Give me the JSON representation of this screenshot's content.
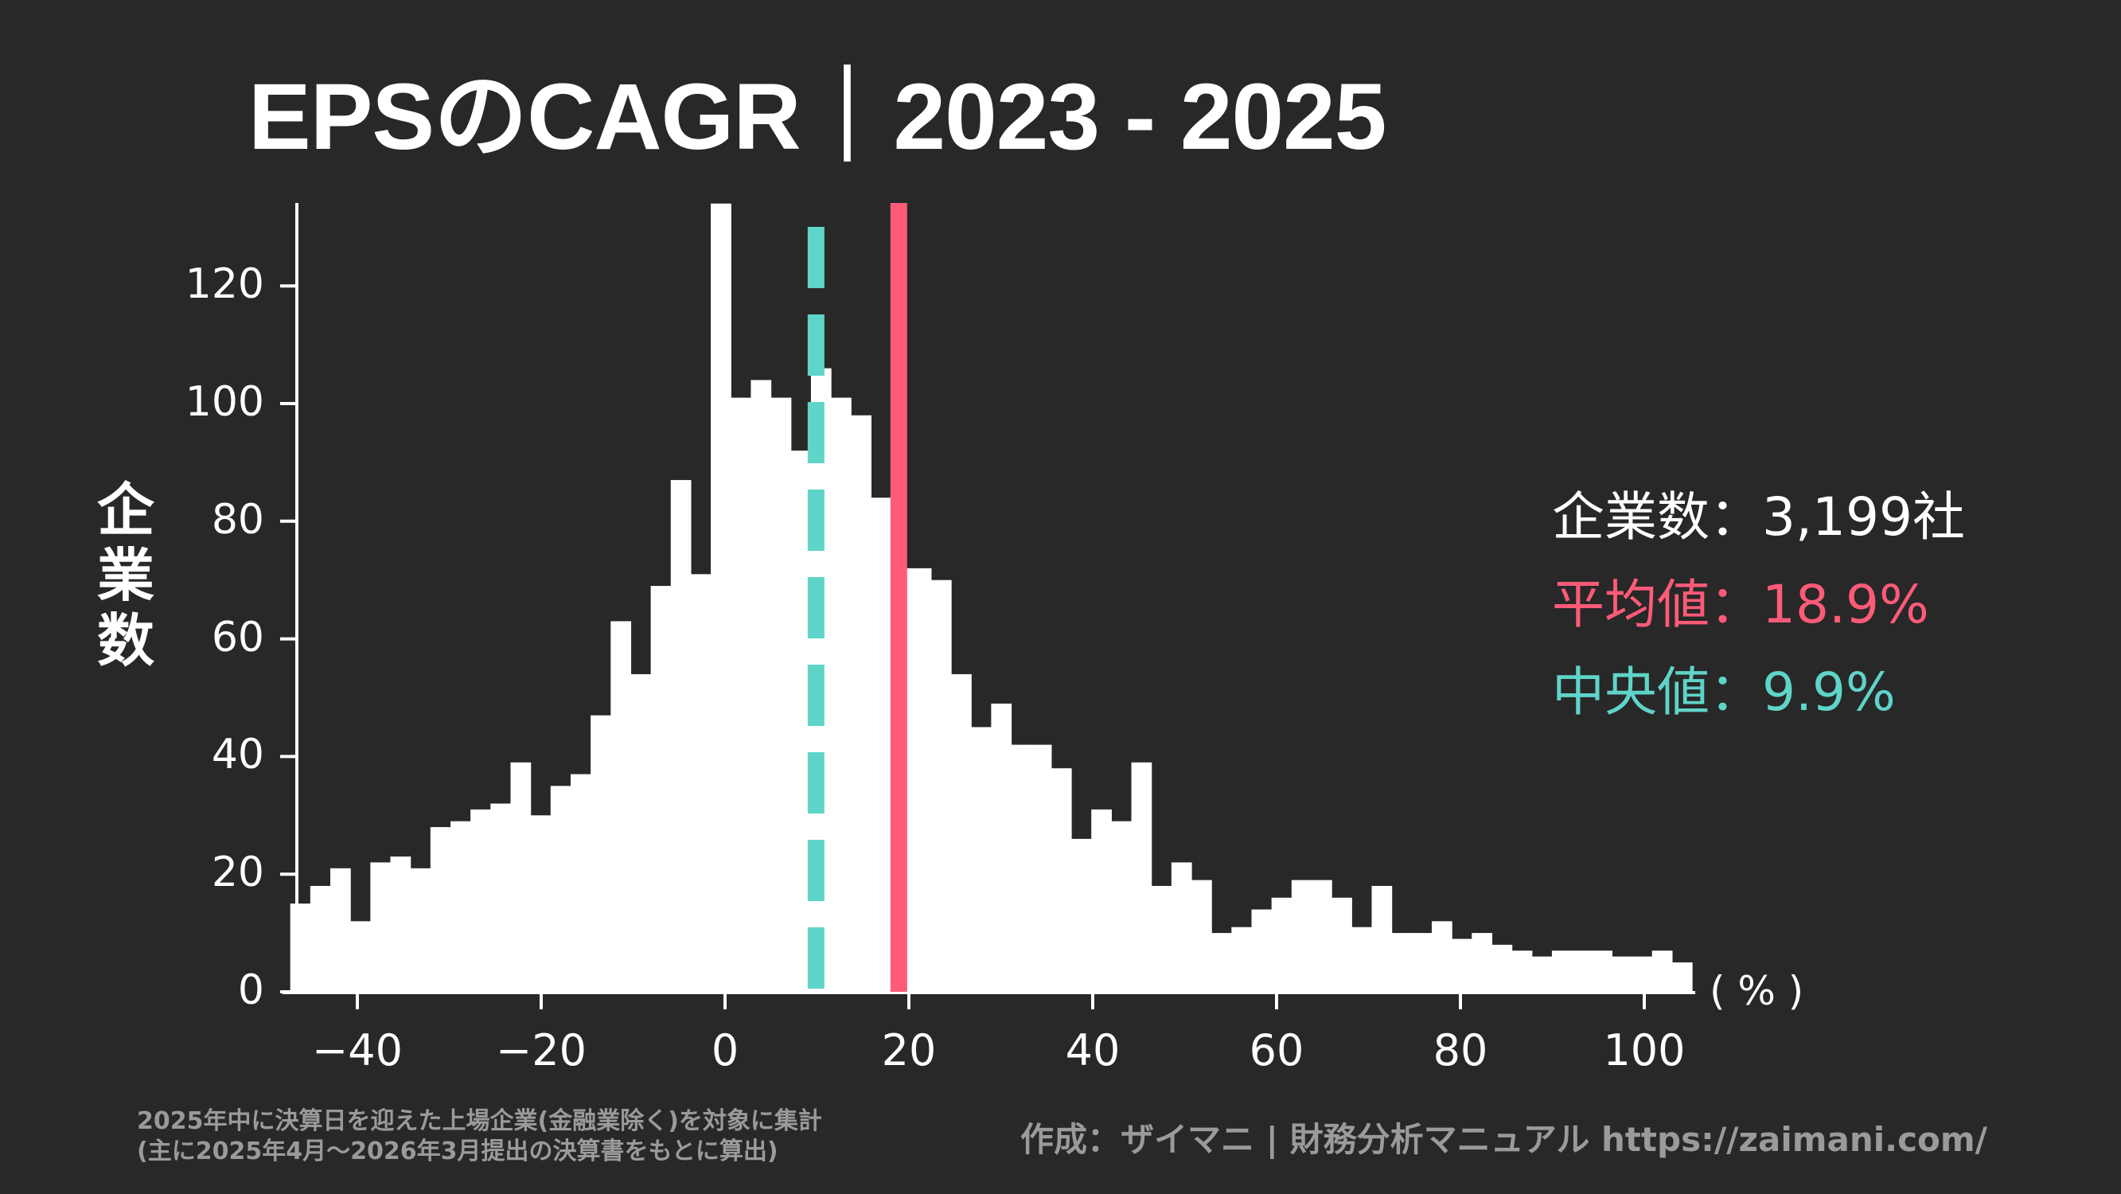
{
  "title": "EPSのCAGR｜2023 - 2025",
  "ylabel_chars": [
    "企",
    "業",
    "数"
  ],
  "axis_unit": "( % )",
  "legend": {
    "count": {
      "label": "企業数：",
      "value": "3,199社",
      "color": "#ffffff"
    },
    "mean": {
      "label": "平均値：",
      "value": "18.9%",
      "color": "#ff5b78"
    },
    "median": {
      "label": "中央値：",
      "value": "9.9%",
      "color": "#5fd4c9"
    }
  },
  "footnote": {
    "line1": "2025年中に決算日を迎えた上場企業(金融業除く)を対象に集計",
    "line2": "(主に2025年4月～2026年3月提出の決算書をもとに算出)"
  },
  "credit": "作成：ザイマニ | 財務分析マニュアル https://zaimani.com/",
  "colors": {
    "background": "#282828",
    "bars": "#ffffff",
    "mean_line": "#ff5b78",
    "median_line": "#5fd4c9"
  },
  "chart_data": {
    "type": "bar",
    "subtype": "histogram",
    "title": "EPSのCAGR｜2023 - 2025",
    "xlabel": "( % )",
    "ylabel": "企業数",
    "xlim": [
      -47.3,
      105.2
    ],
    "ylim": [
      0,
      134
    ],
    "x_ticks": [
      -40,
      -20,
      0,
      20,
      40,
      60,
      80,
      100
    ],
    "y_ticks": [
      0,
      20,
      40,
      60,
      80,
      100,
      120
    ],
    "bin_width": 2.18,
    "bin_start": -47.3,
    "values": [
      15,
      18,
      21,
      12,
      22,
      23,
      21,
      28,
      29,
      31,
      32,
      39,
      30,
      35,
      37,
      47,
      63,
      54,
      69,
      87,
      71,
      134,
      101,
      104,
      101,
      92,
      106,
      101,
      98,
      84,
      72,
      72,
      70,
      54,
      45,
      49,
      42,
      42,
      38,
      26,
      31,
      29,
      39,
      18,
      22,
      19,
      10,
      11,
      14,
      16,
      19,
      19,
      16,
      11,
      18,
      10,
      10,
      12,
      9,
      10,
      8,
      7,
      6,
      7,
      7,
      7,
      6,
      6,
      7,
      5
    ],
    "mean": 18.9,
    "median": 9.9,
    "count": 3199,
    "grid": false,
    "legend_position": "right"
  }
}
